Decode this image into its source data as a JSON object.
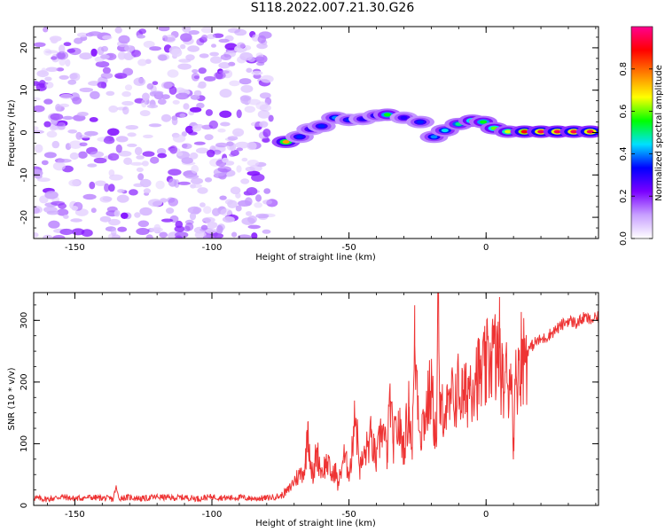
{
  "title": "S118.2022.007.21.30.G26",
  "chart_data": [
    {
      "type": "heatmap",
      "title": "S118.2022.007.21.30.G26",
      "xlabel": "Height of straight line (km)",
      "ylabel": "Frequency (Hz)",
      "xlim": [
        -165,
        41
      ],
      "ylim": [
        -25,
        25
      ],
      "x_ticks": [
        "-150",
        "-100",
        "-50",
        "0"
      ],
      "y_ticks": [
        "20",
        "10",
        "0",
        "-10",
        "-20"
      ],
      "grid": false,
      "colorbar": {
        "label": "Normalized spectral amplitude",
        "range": [
          0,
          1
        ],
        "ticks": [
          "0.0",
          "0.2",
          "0.4",
          "0.6",
          "0.8"
        ],
        "colormap": "rainbow",
        "stops": [
          "#ffffff",
          "#c8a0ff",
          "#7a00ff",
          "#0000ff",
          "#00e0ff",
          "#00ff00",
          "#ffff00",
          "#ff8000",
          "#ff0000",
          "#ff0090"
        ]
      },
      "noise_region": {
        "x": [
          -165,
          -78
        ],
        "y": [
          -25,
          25
        ]
      },
      "signal_trace": [
        {
          "x": -73,
          "y": -2.2,
          "amp": 0.75
        },
        {
          "x": -68,
          "y": -1.0,
          "amp": 0.35
        },
        {
          "x": -64,
          "y": 0.8,
          "amp": 0.3
        },
        {
          "x": -60,
          "y": 1.5,
          "amp": 0.35
        },
        {
          "x": -55,
          "y": 3.5,
          "amp": 0.4
        },
        {
          "x": -50,
          "y": 3.0,
          "amp": 0.35
        },
        {
          "x": -45,
          "y": 3.2,
          "amp": 0.3
        },
        {
          "x": -40,
          "y": 4.0,
          "amp": 0.35
        },
        {
          "x": -36,
          "y": 4.2,
          "amp": 0.55
        },
        {
          "x": -30,
          "y": 3.5,
          "amp": 0.3
        },
        {
          "x": -24,
          "y": 2.5,
          "amp": 0.35
        },
        {
          "x": -19,
          "y": -1.0,
          "amp": 0.4
        },
        {
          "x": -15,
          "y": 0.5,
          "amp": 0.45
        },
        {
          "x": -10,
          "y": 2.0,
          "amp": 0.5
        },
        {
          "x": -5,
          "y": 2.8,
          "amp": 0.6
        },
        {
          "x": -1,
          "y": 2.5,
          "amp": 0.55
        },
        {
          "x": 3,
          "y": 1.0,
          "amp": 0.6
        },
        {
          "x": 8,
          "y": 0.2,
          "amp": 0.65
        },
        {
          "x": 14,
          "y": 0.2,
          "amp": 0.9
        },
        {
          "x": 20,
          "y": 0.2,
          "amp": 0.95
        },
        {
          "x": 26,
          "y": 0.2,
          "amp": 0.95
        },
        {
          "x": 32,
          "y": 0.2,
          "amp": 0.95
        },
        {
          "x": 38,
          "y": 0.2,
          "amp": 0.95
        }
      ]
    },
    {
      "type": "line",
      "xlabel": "Height of straight line (km)",
      "ylabel": "SNR (10 * v/v)",
      "xlim": [
        -165,
        41
      ],
      "ylim": [
        0,
        345
      ],
      "x_ticks": [
        "-150",
        "-100",
        "-50",
        "0"
      ],
      "y_ticks": [
        "0",
        "100",
        "200",
        "300"
      ],
      "grid": false,
      "line_color": "#ee3333",
      "series": [
        {
          "x": [
            -165,
            -160,
            -155,
            -150,
            -145,
            -140,
            -136,
            -135,
            -134,
            -130,
            -125,
            -120,
            -115,
            -110,
            -105,
            -100,
            -95,
            -90,
            -85,
            -80,
            -75,
            -72,
            -70,
            -68,
            -66,
            -65,
            -64,
            -63,
            -62,
            -60,
            -58,
            -56,
            -55,
            -54,
            -52,
            -50,
            -49,
            -48,
            -46,
            -44,
            -42,
            -40,
            -38,
            -36,
            -35,
            -34,
            -32,
            -30,
            -28,
            -27,
            -26,
            -24,
            -22,
            -20,
            -19,
            -18,
            -17.5,
            -17,
            -16.5,
            -16,
            -14,
            -12,
            -10,
            -8,
            -6,
            -4,
            -2,
            0,
            2,
            4,
            5,
            6,
            7,
            8,
            9,
            10,
            11,
            12,
            15,
            18,
            21,
            24,
            27,
            30,
            33,
            36,
            38,
            41
          ],
          "values": [
            12,
            10,
            14,
            11,
            13,
            12,
            10,
            30,
            12,
            13,
            11,
            14,
            12,
            13,
            11,
            14,
            12,
            13,
            11,
            12,
            15,
            25,
            40,
            50,
            60,
            135,
            70,
            40,
            90,
            55,
            70,
            45,
            60,
            30,
            80,
            55,
            75,
            165,
            60,
            85,
            110,
            70,
            130,
            80,
            180,
            100,
            130,
            95,
            160,
            90,
            260,
            120,
            150,
            190,
            140,
            110,
            345,
            180,
            130,
            170,
            150,
            175,
            190,
            170,
            200,
            215,
            205,
            220,
            250,
            235,
            255,
            190,
            215,
            195,
            230,
            110,
            210,
            240,
            250,
            265,
            270,
            280,
            290,
            300,
            295,
            305,
            300,
            305
          ]
        }
      ]
    }
  ]
}
